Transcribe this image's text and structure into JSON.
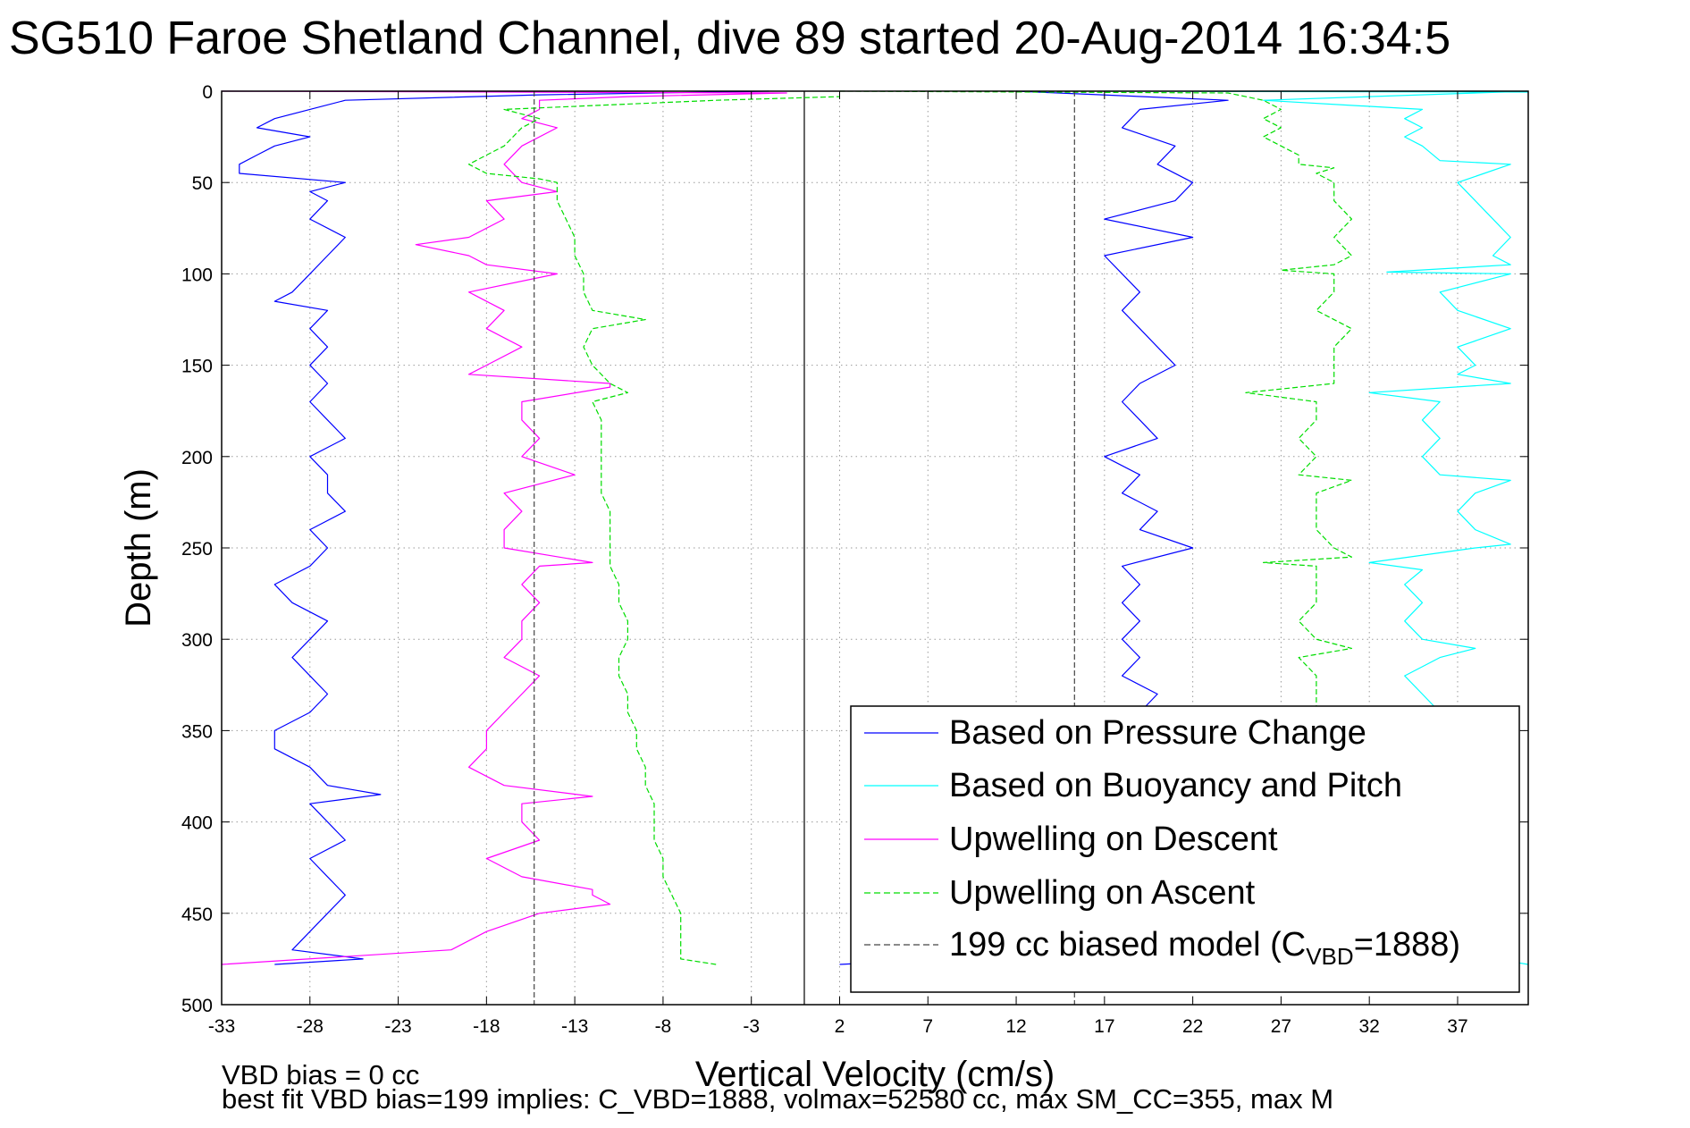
{
  "chart_data": {
    "type": "line",
    "title": "SG510 Faroe Shetland Channel, dive 89 started 20-Aug-2014 16:34:5",
    "xlabel": "Vertical Velocity (cm/s)",
    "ylabel": "Depth (m)",
    "xlim": [
      -33,
      41
    ],
    "ylim": [
      0,
      500
    ],
    "y_reversed": true,
    "grid": true,
    "x_ticks": [
      -33,
      -28,
      -23,
      -18,
      -13,
      -8,
      -3,
      2,
      7,
      12,
      17,
      22,
      27,
      32,
      37
    ],
    "y_ticks": [
      0,
      50,
      100,
      150,
      200,
      250,
      300,
      350,
      400,
      450,
      500
    ],
    "legend_position": "bottom-right",
    "legend": {
      "series1": "Based on Pressure Change",
      "series2": "Based on Buoyancy and Pitch",
      "series3": "Upwelling on Descent",
      "series4": "Upwelling on Ascent",
      "model_prefix": "199 cc biased model (C",
      "model_sub": "VBD",
      "model_suffix": "=1888)"
    },
    "notes": {
      "line1": "VBD bias = 0 cc",
      "line2": "best fit VBD bias=199 implies: C_VBD=1888, volmax=52580 cc, max SM_CC=355, max M"
    },
    "series": [
      {
        "name": "Based on Pressure Change",
        "color": "#0000ff",
        "style": "solid",
        "descent": {
          "depth": [
            0,
            2,
            5,
            10,
            15,
            20,
            25,
            30,
            35,
            40,
            45,
            50,
            55,
            60,
            70,
            80,
            90,
            100,
            110,
            115,
            120,
            130,
            140,
            150,
            160,
            170,
            180,
            190,
            200,
            210,
            220,
            230,
            240,
            250,
            260,
            270,
            280,
            290,
            300,
            310,
            320,
            330,
            340,
            350,
            360,
            370,
            380,
            385,
            390,
            400,
            410,
            420,
            430,
            440,
            450,
            460,
            470,
            475,
            478
          ],
          "vel": [
            -2,
            -15,
            -26,
            -28,
            -30,
            -31,
            -28,
            -30,
            -31,
            -32,
            -32,
            -26,
            -28,
            -27,
            -28,
            -26,
            -27,
            -28,
            -29,
            -30,
            -27,
            -28,
            -27,
            -28,
            -27,
            -28,
            -27,
            -26,
            -28,
            -27,
            -27,
            -26,
            -28,
            -27,
            -28,
            -30,
            -29,
            -27,
            -28,
            -29,
            -28,
            -27,
            -28,
            -30,
            -30,
            -28,
            -27,
            -24,
            -28,
            -27,
            -26,
            -28,
            -27,
            -26,
            -27,
            -28,
            -29,
            -25,
            -30
          ]
        },
        "ascent": {
          "depth": [
            478,
            470,
            460,
            450,
            440,
            430,
            420,
            410,
            400,
            390,
            380,
            370,
            360,
            350,
            340,
            330,
            320,
            310,
            300,
            290,
            280,
            270,
            260,
            250,
            240,
            230,
            220,
            210,
            200,
            190,
            180,
            170,
            160,
            150,
            140,
            130,
            120,
            110,
            100,
            90,
            80,
            70,
            60,
            50,
            40,
            30,
            20,
            10,
            5,
            0
          ],
          "vel": [
            2,
            18,
            19,
            18,
            19,
            18,
            19,
            18,
            19,
            18,
            19,
            18,
            19,
            18,
            19,
            20,
            18,
            19,
            18,
            19,
            18,
            19,
            18,
            22,
            19,
            20,
            18,
            19,
            17,
            20,
            19,
            18,
            19,
            21,
            20,
            19,
            18,
            19,
            18,
            17,
            22,
            17,
            21,
            22,
            20,
            21,
            18,
            19,
            24,
            12
          ]
        }
      },
      {
        "name": "Based on Buoyancy and Pitch",
        "color": "#00ffff",
        "style": "solid",
        "descent": {
          "depth": [
            0,
            0.5
          ],
          "vel": [
            17,
            41
          ]
        },
        "ascent": {
          "depth": [
            478,
            470,
            460,
            450,
            440,
            430,
            420,
            410,
            400,
            390,
            380,
            370,
            360,
            350,
            340,
            330,
            320,
            315,
            310,
            305,
            300,
            290,
            280,
            270,
            262,
            258,
            250,
            248,
            240,
            230,
            220,
            213,
            210,
            200,
            190,
            180,
            170,
            165,
            160,
            155,
            150,
            140,
            130,
            120,
            110,
            100,
            99,
            95,
            90,
            80,
            70,
            60,
            50,
            40,
            38,
            30,
            25,
            20,
            15,
            10,
            5,
            0
          ],
          "vel": [
            41,
            36,
            37,
            36,
            37,
            36,
            37,
            36,
            37,
            36,
            37,
            36,
            37,
            35,
            36,
            35,
            34,
            35,
            36,
            38,
            35,
            34,
            35,
            34,
            35,
            32,
            38,
            40,
            38,
            37,
            38,
            40,
            36,
            35,
            36,
            35,
            36,
            32,
            40,
            37,
            38,
            37,
            40,
            37,
            36,
            40,
            33,
            40,
            39,
            40,
            39,
            38,
            37,
            40,
            36,
            35,
            34,
            35,
            34,
            35,
            26,
            41
          ]
        }
      },
      {
        "name": "Upwelling on Descent",
        "color": "#ff00ff",
        "style": "solid",
        "depth": [
          0,
          1,
          3,
          5,
          10,
          15,
          20,
          30,
          40,
          50,
          55,
          60,
          70,
          80,
          84,
          90,
          95,
          100,
          110,
          120,
          130,
          140,
          150,
          155,
          160,
          162,
          170,
          180,
          190,
          200,
          210,
          220,
          230,
          240,
          250,
          258,
          260,
          270,
          280,
          290,
          300,
          310,
          320,
          330,
          340,
          350,
          360,
          370,
          380,
          386,
          390,
          400,
          410,
          420,
          430,
          437,
          440,
          445,
          450,
          460,
          470,
          478
        ],
        "vel": [
          -33,
          -1,
          -10,
          -15,
          -15,
          -16,
          -14,
          -16,
          -17,
          -16,
          -14,
          -18,
          -17,
          -19,
          -22,
          -19,
          -18,
          -14,
          -19,
          -17,
          -18,
          -16,
          -18,
          -19,
          -11,
          -11,
          -16,
          -16,
          -15,
          -16,
          -13,
          -17,
          -16,
          -17,
          -17,
          -12,
          -15,
          -16,
          -15,
          -16,
          -16,
          -17,
          -15,
          -16,
          -17,
          -18,
          -18,
          -19,
          -17,
          -12,
          -16,
          -16,
          -15,
          -18,
          -16,
          -12,
          -12,
          -11,
          -15,
          -18,
          -20,
          -33
        ]
      },
      {
        "name": "Upwelling on Ascent",
        "color": "#00dd00",
        "style": "dashed",
        "descent": {
          "depth": [
            478,
            475,
            470,
            460,
            450,
            440,
            430,
            420,
            410,
            400,
            390,
            380,
            370,
            360,
            350,
            340,
            330,
            320,
            310,
            300,
            290,
            280,
            270,
            260,
            250,
            240,
            230,
            220,
            210,
            200,
            190,
            180,
            170,
            165,
            160,
            150,
            140,
            130,
            125,
            120,
            110,
            100,
            90,
            80,
            70,
            60,
            50,
            48,
            45,
            40,
            30,
            20,
            15,
            10,
            5,
            3
          ],
          "vel": [
            -5,
            -7,
            -7,
            -7,
            -7,
            -7.5,
            -8,
            -8,
            -8.5,
            -8.5,
            -8.5,
            -9,
            -9,
            -9.5,
            -9.5,
            -10,
            -10,
            -10.5,
            -10.5,
            -10,
            -10,
            -10.5,
            -10.5,
            -11,
            -11,
            -11,
            -11,
            -11.5,
            -11.5,
            -11.5,
            -11.5,
            -11.5,
            -12,
            -10,
            -11,
            -12,
            -12.5,
            -12,
            -9,
            -12,
            -12.5,
            -12.5,
            -13,
            -13,
            -13.5,
            -14,
            -14,
            -15,
            -18,
            -19,
            -17,
            -16,
            -15,
            -17,
            -5,
            2
          ]
        },
        "ascent": {
          "depth": [
            0,
            1,
            5,
            10,
            15,
            20,
            25,
            30,
            35,
            40,
            42,
            45,
            50,
            60,
            70,
            80,
            90,
            95,
            98,
            100,
            110,
            120,
            130,
            140,
            150,
            160,
            165,
            170,
            180,
            190,
            200,
            210,
            213,
            220,
            230,
            240,
            250,
            255,
            258,
            260,
            270,
            280,
            290,
            300,
            305,
            310,
            320,
            330,
            340,
            345
          ],
          "vel": [
            2,
            24,
            26,
            27,
            26,
            27,
            26,
            27,
            28,
            28,
            30,
            29,
            30,
            30,
            31,
            30,
            31,
            30,
            27,
            30,
            30,
            29,
            31,
            30,
            30,
            30,
            25,
            29,
            29,
            28,
            29,
            28,
            31,
            29,
            29,
            29,
            30,
            31,
            26,
            29,
            29,
            29,
            28,
            29,
            31,
            28,
            29,
            29,
            29,
            29
          ]
        }
      },
      {
        "name": "199 cc biased model",
        "color": "#444444",
        "style": "dashed",
        "descent": {
          "depth": [
            0,
            500
          ],
          "vel": [
            -15.3,
            -15.3
          ]
        },
        "ascent": {
          "depth": [
            0,
            500
          ],
          "vel": [
            15.3,
            15.3
          ]
        }
      }
    ],
    "zero_line_x": 0
  }
}
